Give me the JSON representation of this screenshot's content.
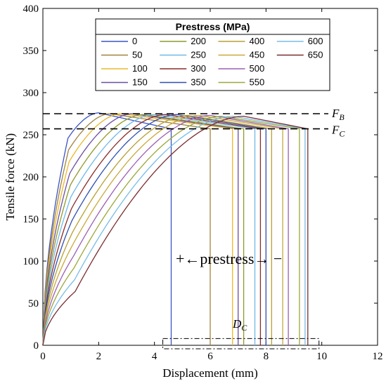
{
  "chart_data": {
    "type": "line",
    "xlabel": "Displacement (mm)",
    "ylabel": "Tensile force (kN)",
    "xlim": [
      0,
      12
    ],
    "ylim": [
      0,
      400
    ],
    "xticks": [
      "0",
      "2",
      "4",
      "6",
      "8",
      "10",
      "12"
    ],
    "yticks": [
      "0",
      "50",
      "100",
      "150",
      "200",
      "250",
      "300",
      "350",
      "400"
    ],
    "grid": false,
    "legend": {
      "title": "Prestress (MPa)",
      "placement": "top-center",
      "columns": 4
    },
    "reference_lines": {
      "F_B": 275,
      "F_C": 257
    },
    "annotations": {
      "F_B_symbol": "F",
      "F_B_sub": "B",
      "F_C_symbol": "F",
      "F_C_sub": "C",
      "D_C_symbol": "D",
      "D_C_sub": "C",
      "prestress_label": "+←prestress→ −"
    },
    "dc_box": {
      "x_range": [
        4.3,
        9.9
      ],
      "y_range": [
        0,
        8
      ]
    },
    "series": [
      {
        "name": "0",
        "color": "#3a55c4",
        "y_yield": 246,
        "peak_x": 2.0,
        "peak_y": 276,
        "fail_x": 4.6
      },
      {
        "name": "50",
        "color": "#a0823c",
        "y_yield": 232,
        "peak_x": 2.4,
        "peak_y": 275,
        "fail_x": 6.0
      },
      {
        "name": "100",
        "color": "#e8b829",
        "y_yield": 218,
        "peak_x": 2.8,
        "peak_y": 275,
        "fail_x": 6.8
      },
      {
        "name": "150",
        "color": "#6b4fa0",
        "y_yield": 204,
        "peak_x": 3.2,
        "peak_y": 275,
        "fail_x": 7.0
      },
      {
        "name": "200",
        "color": "#8f9a2c",
        "y_yield": 190,
        "peak_x": 3.6,
        "peak_y": 274,
        "fail_x": 7.2
      },
      {
        "name": "250",
        "color": "#6fb9e6",
        "y_yield": 176,
        "peak_x": 4.0,
        "peak_y": 274,
        "fail_x": 7.6
      },
      {
        "name": "300",
        "color": "#8b2b2b",
        "y_yield": 162,
        "peak_x": 4.4,
        "peak_y": 274,
        "fail_x": 7.8
      },
      {
        "name": "350",
        "color": "#2f4fb0",
        "y_yield": 148,
        "peak_x": 4.8,
        "peak_y": 274,
        "fail_x": 8.0
      },
      {
        "name": "400",
        "color": "#b8a030",
        "y_yield": 134,
        "peak_x": 5.2,
        "peak_y": 273,
        "fail_x": 8.2
      },
      {
        "name": "450",
        "color": "#c9a83a",
        "y_yield": 120,
        "peak_x": 5.6,
        "peak_y": 273,
        "fail_x": 8.6
      },
      {
        "name": "500",
        "color": "#9b5fb5",
        "y_yield": 106,
        "peak_x": 6.0,
        "peak_y": 273,
        "fail_x": 8.8
      },
      {
        "name": "550",
        "color": "#9aa83a",
        "y_yield": 92,
        "peak_x": 6.4,
        "peak_y": 272,
        "fail_x": 9.2
      },
      {
        "name": "600",
        "color": "#78bde6",
        "y_yield": 78,
        "peak_x": 6.8,
        "peak_y": 272,
        "fail_x": 9.4
      },
      {
        "name": "650",
        "color": "#7a2e2e",
        "y_yield": 64,
        "peak_x": 7.2,
        "peak_y": 272,
        "fail_x": 9.5
      }
    ]
  }
}
